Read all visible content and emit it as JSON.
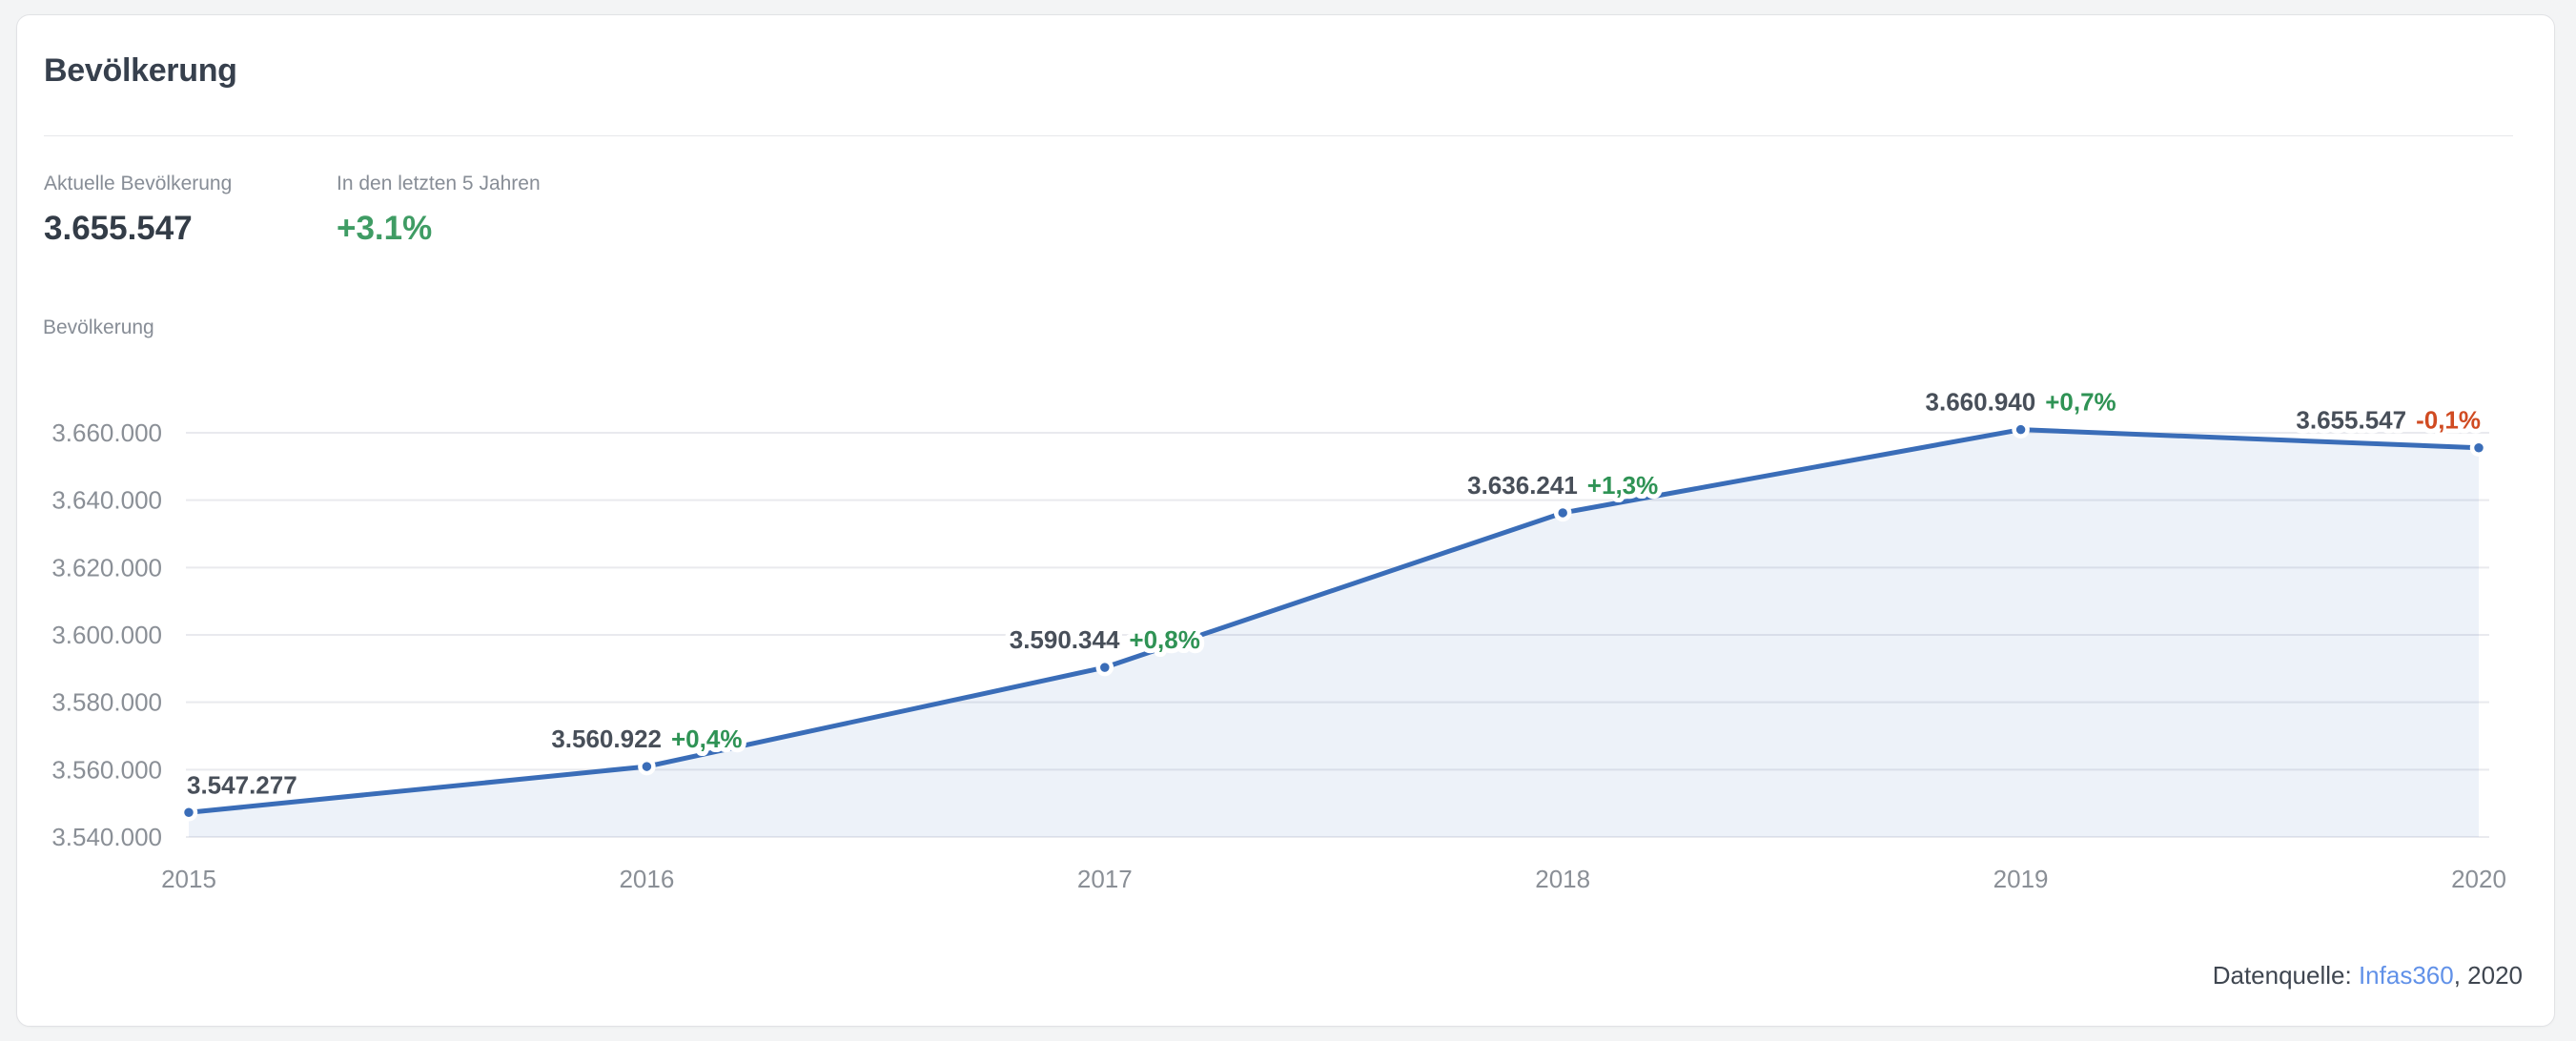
{
  "page": {
    "background": "#f3f4f5"
  },
  "card": {
    "title": "Bevölkerung",
    "stats": [
      {
        "label": "Aktuelle Bevölkerung",
        "value": "3.655.547"
      },
      {
        "label": "In den letzten 5 Jahren",
        "value": "+3.1%"
      }
    ],
    "footer": {
      "prefix": "Datenquelle: ",
      "link": "Infas360",
      "suffix": ", 2020"
    }
  },
  "chart_data": {
    "type": "area",
    "title": "Bevölkerung",
    "ylabel": "Bevölkerung",
    "xlabel": "",
    "x": [
      2015,
      2016,
      2017,
      2018,
      2019,
      2020
    ],
    "values": [
      3547277,
      3560922,
      3590344,
      3636241,
      3660940,
      3655547
    ],
    "point_labels": [
      "3.547.277",
      "3.560.922",
      "3.590.344",
      "3.636.241",
      "3.660.940",
      "3.655.547"
    ],
    "point_changes": [
      "",
      "+0,4%",
      "+0,8%",
      "+1,3%",
      "+0,7%",
      "-0,1%"
    ],
    "ylim": [
      3540000,
      3660000
    ],
    "yticks": [
      {
        "value": 3540000,
        "label": "3.540.000"
      },
      {
        "value": 3560000,
        "label": "3.560.000"
      },
      {
        "value": 3580000,
        "label": "3.580.000"
      },
      {
        "value": 3600000,
        "label": "3.600.000"
      },
      {
        "value": 3620000,
        "label": "3.620.000"
      },
      {
        "value": 3640000,
        "label": "3.640.000"
      },
      {
        "value": 3660000,
        "label": "3.660.000"
      }
    ],
    "grid": true,
    "legend": false
  },
  "colors": {
    "page_bg": "#f3f4f5",
    "line_blue": "#3a6db8",
    "area_fill_opacity": "0.09",
    "positive_green": "#3f9c64",
    "chart_positive_green": "#2f9355",
    "negative_red": "#d04b22",
    "title_dark": "#37404d",
    "value_dark": "#333c47",
    "label_gray": "#878d96",
    "axis_gray": "#8a8f96",
    "grid_line": "#e9eaee",
    "data_label_dark": "#484f59",
    "link_blue": "#6191e8",
    "footer_dark": "#3f4650"
  }
}
